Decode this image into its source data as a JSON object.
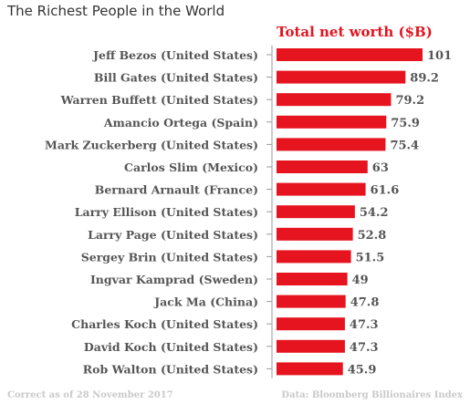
{
  "title": "The Richest People in the World",
  "footer": {
    "left": "Correct as of 28 November 2017",
    "right": "Data: Bloomberg Billionaires Index"
  },
  "colors": {
    "bar": "#e5141f",
    "header": "#e5141f",
    "label": "#555555",
    "axis": "#9a9a9a"
  },
  "chart_data": {
    "type": "bar",
    "orientation": "horizontal",
    "title": "The Richest People in the World",
    "series_header": "Total net worth ($B)",
    "categories": [
      "Jeff Bezos (United States)",
      "Bill Gates (United States)",
      "Warren Buffett (United States)",
      "Amancio Ortega (Spain)",
      "Mark Zuckerberg (United States)",
      "Carlos Slim (Mexico)",
      "Bernard Arnault (France)",
      "Larry Ellison (United States)",
      "Larry Page (United States)",
      "Sergey Brin (United States)",
      "Ingvar Kamprad (Sweden)",
      "Jack Ma (China)",
      "Charles Koch (United States)",
      "David Koch (United States)",
      "Rob Walton (United States)"
    ],
    "values": [
      101,
      89.2,
      79.2,
      75.9,
      75.4,
      63,
      61.6,
      54.2,
      52.8,
      51.5,
      49,
      47.8,
      47.3,
      47.3,
      45.9
    ],
    "value_labels": [
      "101",
      "89.2",
      "79.2",
      "75.9",
      "75.4",
      "63",
      "61.6",
      "54.2",
      "52.8",
      "51.5",
      "49",
      "47.8",
      "47.3",
      "47.3",
      "45.9"
    ],
    "xlim": [
      0,
      101
    ],
    "grid": false
  }
}
